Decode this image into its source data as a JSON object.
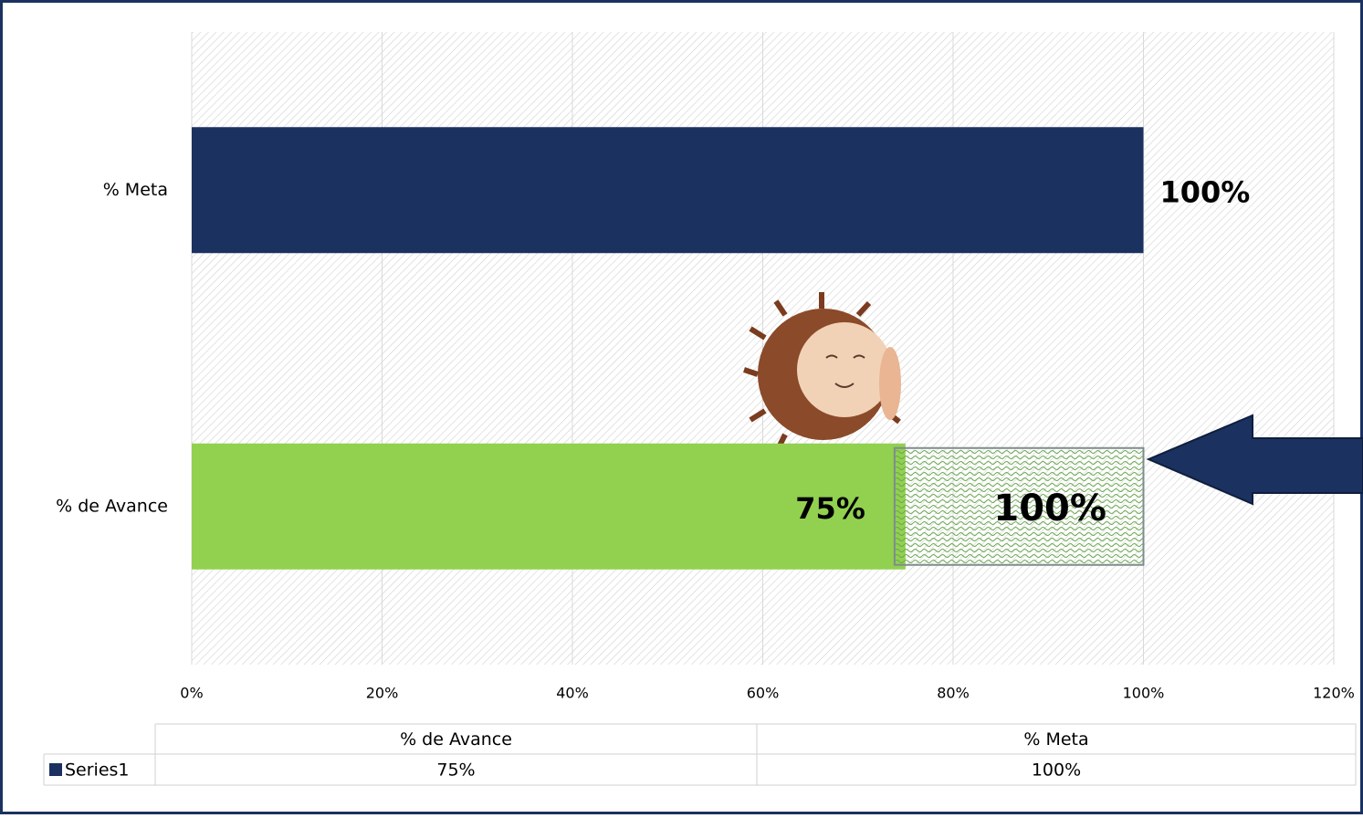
{
  "chart_data": {
    "type": "hbar",
    "categories": [
      "% de Avance",
      "% Meta"
    ],
    "series": [
      {
        "name": "Series1",
        "color": "#1b3160",
        "values": [
          75,
          100
        ],
        "value_labels": [
          "75%",
          "100%"
        ]
      }
    ],
    "point_colors": [
      "#92d050",
      "#1b3160"
    ],
    "value_label_colors": [
      "#ff0000",
      "#000000"
    ],
    "xlim": [
      0,
      120
    ],
    "xticks": [
      {
        "value": 0,
        "label": "0%"
      },
      {
        "value": 20,
        "label": "20%"
      },
      {
        "value": 40,
        "label": "40%"
      },
      {
        "value": 60,
        "label": "60%"
      },
      {
        "value": 80,
        "label": "80%"
      },
      {
        "value": 100,
        "label": "100%"
      },
      {
        "value": 120,
        "label": "120%"
      }
    ],
    "grid": true,
    "annotation": {
      "text": "100%",
      "value": 100,
      "category": 0
    },
    "data_table": true
  }
}
